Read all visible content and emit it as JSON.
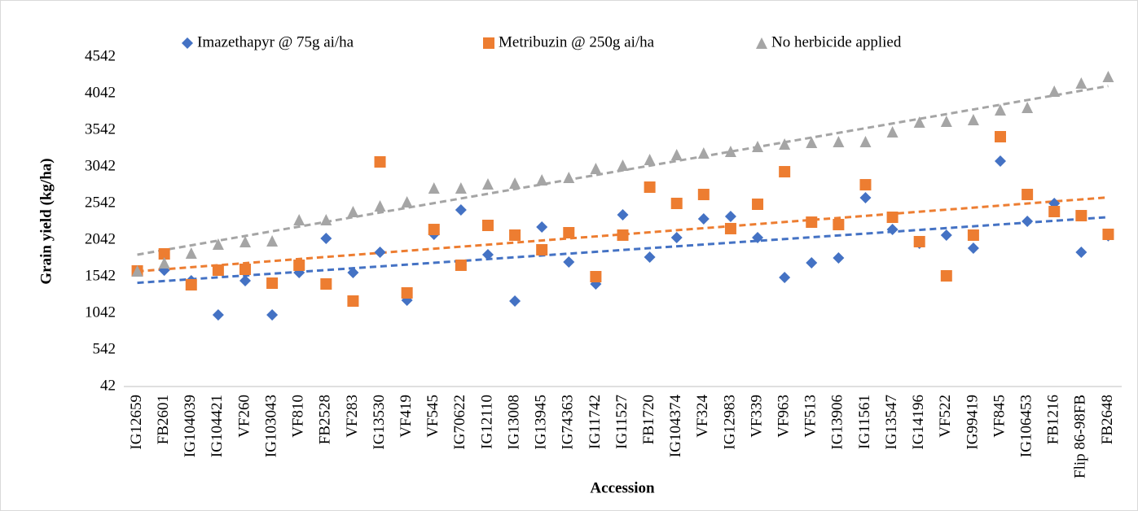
{
  "chart_data": {
    "type": "scatter",
    "x_label": "Accession",
    "y_label": "Grain yield (kg/ha)",
    "categories": [
      "IG12659",
      "FB2601",
      "IG104039",
      "IG104421",
      "VF260",
      "IG103043",
      "VF810",
      "FB2528",
      "VF283",
      "IG13530",
      "VF419",
      "VF545",
      "IG70622",
      "IG12110",
      "IG13008",
      "IG13945",
      "IG74363",
      "IG11742",
      "IG11527",
      "FB1720",
      "IG104374",
      "VF324",
      "IG12983",
      "VF339",
      "VF963",
      "VF513",
      "IG13906",
      "IG11561",
      "IG13547",
      "IG14196",
      "VF522",
      "IG99419",
      "VF845",
      "IG106453",
      "FB1216",
      "Flip 86-98FB",
      "FB2648"
    ],
    "series": [
      {
        "name": "Imazethapyr @ 75g ai/ha",
        "color": "#4472c4",
        "marker": "diamond",
        "trendline": "linear",
        "values": [
          1620,
          1630,
          1487,
          1020,
          1487,
          1020,
          1598,
          2064,
          1598,
          1875,
          1220,
          2120,
          2453,
          1842,
          1209,
          2220,
          1742,
          1442,
          2386,
          1809,
          2075,
          2331,
          2364,
          2075,
          1531,
          1731,
          1798,
          2620,
          2186,
          1998,
          2109,
          1931,
          3120,
          2298,
          2542,
          1875,
          2100
        ]
      },
      {
        "name": "Metribuzin @ 250g ai/ha",
        "color": "#ed7d31",
        "marker": "square",
        "trendline": "linear",
        "values": [
          1620,
          1853,
          1431,
          1631,
          1642,
          1453,
          1698,
          1442,
          1209,
          3109,
          1320,
          2186,
          1698,
          2242,
          2109,
          1909,
          2142,
          1542,
          2109,
          2764,
          2542,
          2664,
          2198,
          2531,
          2975,
          2286,
          2253,
          2797,
          2353,
          2020,
          1553,
          2109,
          3453,
          2664,
          2431,
          2375,
          2120
        ]
      },
      {
        "name": "No herbicide applied",
        "color": "#a5a5a5",
        "marker": "triangle",
        "trendline": "linear",
        "values": [
          1620,
          1731,
          1864,
          1986,
          2020,
          2031,
          2320,
          2320,
          2431,
          2509,
          2564,
          2753,
          2753,
          2809,
          2820,
          2864,
          2898,
          3020,
          3064,
          3142,
          3209,
          3231,
          3253,
          3320,
          3353,
          3375,
          3386,
          3386,
          3520,
          3653,
          3664,
          3686,
          3820,
          3853,
          4075,
          4186,
          4275
        ]
      }
    ],
    "ylim": [
      42,
      4542
    ],
    "yticks": [
      42,
      542,
      1042,
      1542,
      2042,
      2542,
      3042,
      3542,
      4042,
      4542
    ],
    "grid": false,
    "legend": "top"
  }
}
